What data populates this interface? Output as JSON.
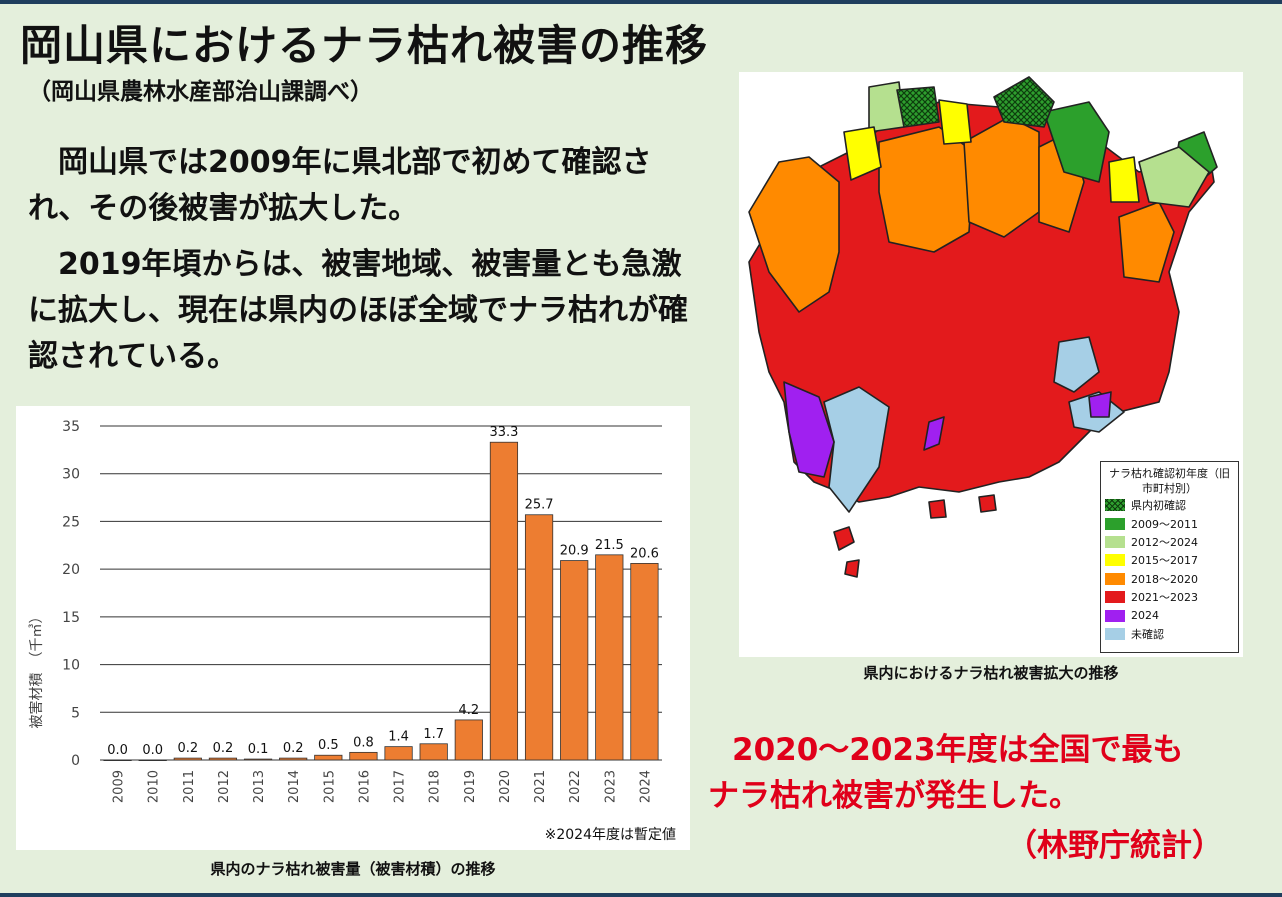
{
  "title": "岡山県におけるナラ枯れ被害の推移",
  "subtitle": "（岡山県農林水産部治山課調べ）",
  "paragraphs": [
    "　岡山県では2009年に県北部で初めて確認され、その後被害が拡大した。",
    "　2019年頃からは、被害地域、被害量とも急激に拡大し、現在は県内のほぼ全域でナラ枯れが確認されている。"
  ],
  "chart_data": {
    "type": "bar",
    "categories": [
      "2009",
      "2010",
      "2011",
      "2012",
      "2013",
      "2014",
      "2015",
      "2016",
      "2017",
      "2018",
      "2019",
      "2020",
      "2021",
      "2022",
      "2023",
      "2024"
    ],
    "values": [
      0.0,
      0.0,
      0.2,
      0.2,
      0.1,
      0.2,
      0.5,
      0.8,
      1.4,
      1.7,
      4.2,
      33.3,
      25.7,
      20.9,
      21.5,
      20.6
    ],
    "value_labels": [
      "0.0",
      "0.0",
      "0.2",
      "0.2",
      "0.1",
      "0.2",
      "0.5",
      "0.8",
      "1.4",
      "1.7",
      "4.2",
      "33.3",
      "25.7",
      "20.9",
      "21.5",
      "20.6"
    ],
    "ylabel": "被害材積　（千㎥）",
    "ylim": [
      0,
      35
    ],
    "yticks": [
      0,
      5,
      10,
      15,
      20,
      25,
      30,
      35
    ],
    "bar_color": "#ed7d31",
    "grid": true,
    "note": "※2024年度は暫定値",
    "caption": "県内のナラ枯れ被害量（被害材積）の推移"
  },
  "map": {
    "caption": "県内におけるナラ枯れ被害拡大の推移",
    "legend_title": "ナラ枯れ確認初年度（旧市町村別）",
    "legend_items": [
      {
        "label": "県内初確認",
        "color": "#2e9e2e",
        "hatched": true
      },
      {
        "label": "2009～2011",
        "color": "#2ca02c"
      },
      {
        "label": "2012～2024",
        "color": "#b5e08f"
      },
      {
        "label": "2015～2017",
        "color": "#ffff00"
      },
      {
        "label": "2018～2020",
        "color": "#ff8a00"
      },
      {
        "label": "2021～2023",
        "color": "#e31a1c"
      },
      {
        "label": "2024",
        "color": "#a020f0"
      },
      {
        "label": "未確認",
        "color": "#a6cfe6"
      }
    ]
  },
  "notes": {
    "line1": "2020～2023年度は全国で最も",
    "line2": "ナラ枯れ被害が発生した。",
    "line3": "（林野庁統計）"
  }
}
